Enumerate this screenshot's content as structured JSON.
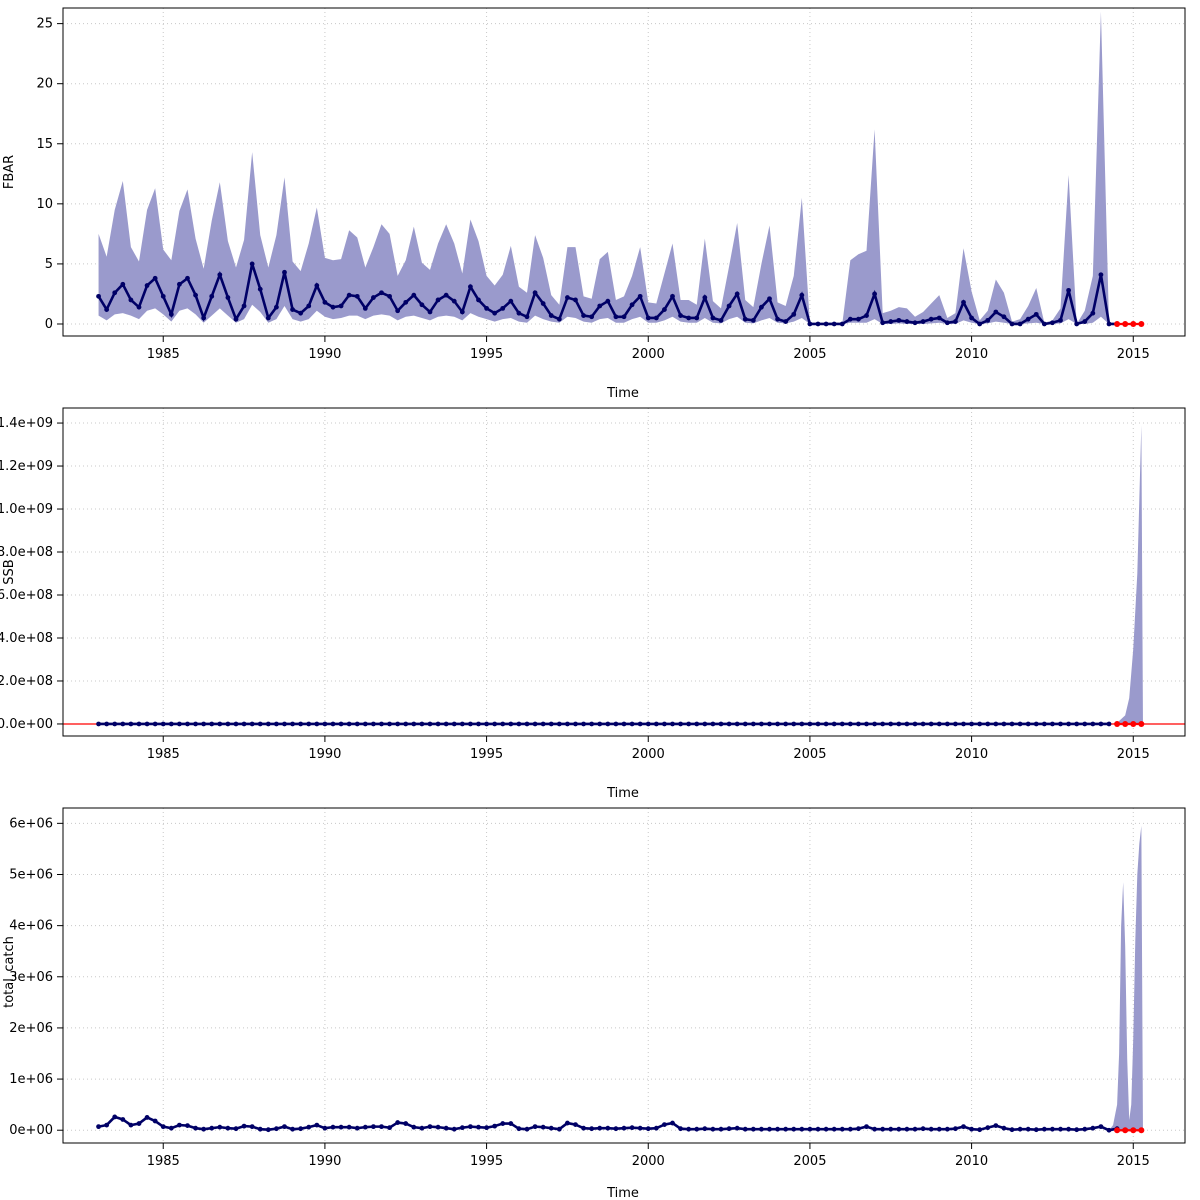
{
  "colors": {
    "band": "#9a9acc",
    "line": "#000066",
    "projection": "#ff0000",
    "grid": "#c8c8c8",
    "refline": "#ff0000"
  },
  "chart_data": [
    {
      "type": "line",
      "ylabel": "FBAR",
      "xlabel": "Time",
      "xlim": [
        1981.9,
        2016.6
      ],
      "ylim": [
        -1.0,
        26.3
      ],
      "xticks": [
        1985,
        1990,
        1995,
        2000,
        2005,
        2010,
        2015
      ],
      "xtick_labels": [
        "1985",
        "1990",
        "1995",
        "2000",
        "2005",
        "2010",
        "2015"
      ],
      "yticks": [
        0,
        5,
        10,
        15,
        20,
        25
      ],
      "ytick_labels": [
        "0",
        "5",
        "10",
        "15",
        "20",
        "25"
      ],
      "grid": true,
      "start": 1983.0,
      "step": 0.25,
      "series": [
        {
          "role": "median",
          "values": [
            2.3,
            1.2,
            2.6,
            3.3,
            2.0,
            1.4,
            3.2,
            3.8,
            2.3,
            0.8,
            3.3,
            3.8,
            2.4,
            0.5,
            2.3,
            4.1,
            2.2,
            0.4,
            1.5,
            5.0,
            2.9,
            0.5,
            1.4,
            4.3,
            1.2,
            0.9,
            1.5,
            3.2,
            1.8,
            1.4,
            1.5,
            2.4,
            2.3,
            1.3,
            2.2,
            2.6,
            2.3,
            1.1,
            1.8,
            2.4,
            1.6,
            1.0,
            2.0,
            2.4,
            1.9,
            1.0,
            3.1,
            2.0,
            1.3,
            0.9,
            1.3,
            1.9,
            0.9,
            0.6,
            2.6,
            1.7,
            0.7,
            0.4,
            2.2,
            2.0,
            0.7,
            0.6,
            1.5,
            1.9,
            0.6,
            0.6,
            1.6,
            2.3,
            0.5,
            0.5,
            1.2,
            2.3,
            0.7,
            0.5,
            0.5,
            2.2,
            0.5,
            0.3,
            1.5,
            2.5,
            0.4,
            0.3,
            1.4,
            2.1,
            0.4,
            0.2,
            0.8,
            2.4,
            0.0,
            0.0,
            0.0,
            0.0,
            0.0,
            0.4,
            0.4,
            0.7,
            2.5,
            0.1,
            0.2,
            0.3,
            0.2,
            0.1,
            0.2,
            0.4,
            0.5,
            0.1,
            0.2,
            1.8,
            0.5,
            0.0,
            0.3,
            1.0,
            0.6,
            0.0,
            0.0,
            0.4,
            0.8,
            0.0,
            0.1,
            0.3,
            2.8,
            0.0,
            0.2,
            0.9,
            4.1,
            0.0,
            0.0
          ]
        },
        {
          "role": "upper",
          "values": [
            7.5,
            5.6,
            9.5,
            11.9,
            6.4,
            5.2,
            9.5,
            11.3,
            6.2,
            5.3,
            9.4,
            11.2,
            7.1,
            4.6,
            8.6,
            11.8,
            6.9,
            4.7,
            7.0,
            14.3,
            7.4,
            4.7,
            7.4,
            12.2,
            5.2,
            4.4,
            6.7,
            9.7,
            5.5,
            5.3,
            5.4,
            7.8,
            7.2,
            4.7,
            6.4,
            8.3,
            7.5,
            4.0,
            5.3,
            8.1,
            5.1,
            4.5,
            6.7,
            8.3,
            6.7,
            4.2,
            8.7,
            6.9,
            4.0,
            3.2,
            4.1,
            6.5,
            3.1,
            2.6,
            7.4,
            5.5,
            2.4,
            1.6,
            6.4,
            6.4,
            2.3,
            2.1,
            5.4,
            6.0,
            2.0,
            2.3,
            4.0,
            6.4,
            1.8,
            1.7,
            4.2,
            6.7,
            2.0,
            2.0,
            1.6,
            7.1,
            1.9,
            1.3,
            4.8,
            8.4,
            2.0,
            1.4,
            5.0,
            8.2,
            1.8,
            1.5,
            4.0,
            10.5,
            0.0,
            0.0,
            0.0,
            0.0,
            0.0,
            5.3,
            5.8,
            6.1,
            16.2,
            0.9,
            1.1,
            1.4,
            1.3,
            0.6,
            1.0,
            1.7,
            2.4,
            0.5,
            0.9,
            6.3,
            2.7,
            0.3,
            1.1,
            3.7,
            2.6,
            0.2,
            0.4,
            1.5,
            3.0,
            0.1,
            0.3,
            1.3,
            12.4,
            0.0,
            1.1,
            4.0,
            26.0,
            0.0,
            0.0
          ]
        },
        {
          "role": "lower",
          "values": [
            0.7,
            0.3,
            0.8,
            0.9,
            0.7,
            0.4,
            1.1,
            1.3,
            0.8,
            0.2,
            1.1,
            1.3,
            0.8,
            0.1,
            0.7,
            1.3,
            0.7,
            0.1,
            0.4,
            1.6,
            1.0,
            0.1,
            0.4,
            1.5,
            0.4,
            0.2,
            0.4,
            1.1,
            0.6,
            0.4,
            0.5,
            0.7,
            0.7,
            0.4,
            0.7,
            0.8,
            0.7,
            0.3,
            0.6,
            0.7,
            0.5,
            0.3,
            0.6,
            0.7,
            0.6,
            0.3,
            0.9,
            0.6,
            0.4,
            0.2,
            0.4,
            0.5,
            0.2,
            0.1,
            0.7,
            0.4,
            0.2,
            0.1,
            0.6,
            0.5,
            0.2,
            0.1,
            0.4,
            0.5,
            0.1,
            0.1,
            0.4,
            0.6,
            0.1,
            0.1,
            0.3,
            0.6,
            0.2,
            0.1,
            0.1,
            0.5,
            0.1,
            0.05,
            0.4,
            0.6,
            0.1,
            0.05,
            0.3,
            0.5,
            0.1,
            0.05,
            0.2,
            0.5,
            0.0,
            0.0,
            0.0,
            0.0,
            0.0,
            0.1,
            0.1,
            0.1,
            0.4,
            0.0,
            0.0,
            0.05,
            0.0,
            0.0,
            0.0,
            0.05,
            0.1,
            0.0,
            0.0,
            0.3,
            0.1,
            0.0,
            0.05,
            0.2,
            0.1,
            0.0,
            0.0,
            0.05,
            0.1,
            0.0,
            0.0,
            0.05,
            0.4,
            0.0,
            0.0,
            0.1,
            0.6,
            0.0,
            0.0
          ]
        }
      ],
      "projection": {
        "x": [
          2014.5,
          2014.75,
          2015.0,
          2015.25
        ],
        "values": [
          0,
          0,
          0,
          0
        ]
      }
    },
    {
      "type": "line",
      "ylabel": "SSB",
      "xlabel": "Time",
      "xlim": [
        1981.9,
        2016.6
      ],
      "ylim": [
        -56000000.0,
        1470000000.0
      ],
      "xticks": [
        1985,
        1990,
        1995,
        2000,
        2005,
        2010,
        2015
      ],
      "xtick_labels": [
        "1985",
        "1990",
        "1995",
        "2000",
        "2005",
        "2010",
        "2015"
      ],
      "yticks": [
        0,
        200000000.0,
        400000000.0,
        600000000.0,
        800000000.0,
        1000000000.0,
        1200000000.0,
        1400000000.0
      ],
      "ytick_labels": [
        "0.0e+00",
        "2.0e+08",
        "4.0e+08",
        "6.0e+08",
        "8.0e+08",
        "1.0e+09",
        "1.2e+09",
        "1.4e+09"
      ],
      "grid": true,
      "start": 1983.0,
      "step": 0.25,
      "n_points": 126,
      "reference_line": 0,
      "band_tail": {
        "x": [
          2014.25,
          2014.5,
          2014.75,
          2014.875,
          2015.0,
          2015.125,
          2015.25,
          2015.3
        ],
        "upper": [
          0,
          5000000.0,
          40000000.0,
          120000000.0,
          350000000.0,
          700000000.0,
          1390000000.0,
          0
        ]
      },
      "projection": {
        "x": [
          2014.5,
          2014.75,
          2015.0,
          2015.25
        ],
        "values": [
          0,
          0,
          0,
          0
        ]
      }
    },
    {
      "type": "line",
      "ylabel": "total_catch",
      "xlabel": "Time",
      "xlim": [
        1981.9,
        2016.6
      ],
      "ylim": [
        -250000.0,
        6300000.0
      ],
      "xticks": [
        1985,
        1990,
        1995,
        2000,
        2005,
        2010,
        2015
      ],
      "xtick_labels": [
        "1985",
        "1990",
        "1995",
        "2000",
        "2005",
        "2010",
        "2015"
      ],
      "yticks": [
        0,
        1000000.0,
        2000000.0,
        3000000.0,
        4000000.0,
        5000000.0,
        6000000.0
      ],
      "ytick_labels": [
        "0e+00",
        "1e+06",
        "2e+06",
        "3e+06",
        "4e+06",
        "5e+06",
        "6e+06"
      ],
      "grid": true,
      "start": 1983.0,
      "step": 0.25,
      "series": [
        {
          "role": "median",
          "values": [
            70000,
            100000,
            260000,
            210000,
            100000,
            130000,
            250000,
            180000,
            70000,
            40000,
            100000,
            90000,
            40000,
            20000,
            40000,
            60000,
            40000,
            30000,
            80000,
            70000,
            20000,
            10000,
            30000,
            70000,
            20000,
            30000,
            60000,
            100000,
            40000,
            60000,
            60000,
            60000,
            40000,
            60000,
            70000,
            70000,
            50000,
            150000,
            130000,
            60000,
            40000,
            70000,
            60000,
            40000,
            20000,
            50000,
            70000,
            60000,
            50000,
            80000,
            130000,
            130000,
            30000,
            20000,
            70000,
            60000,
            40000,
            20000,
            140000,
            110000,
            40000,
            30000,
            40000,
            40000,
            30000,
            40000,
            50000,
            40000,
            30000,
            40000,
            110000,
            140000,
            30000,
            20000,
            20000,
            30000,
            20000,
            20000,
            30000,
            40000,
            20000,
            20000,
            20000,
            20000,
            20000,
            20000,
            20000,
            20000,
            20000,
            20000,
            20000,
            20000,
            20000,
            20000,
            30000,
            70000,
            20000,
            20000,
            20000,
            20000,
            20000,
            20000,
            30000,
            20000,
            20000,
            20000,
            30000,
            70000,
            20000,
            10000,
            50000,
            90000,
            40000,
            10000,
            20000,
            20000,
            10000,
            20000,
            20000,
            20000,
            20000,
            10000,
            20000,
            40000,
            70000,
            0,
            30000
          ]
        }
      ],
      "band_tail": {
        "x": [
          2014.25,
          2014.375,
          2014.5,
          2014.5625,
          2014.625,
          2014.6875,
          2014.75,
          2014.8125,
          2014.875,
          2014.9375,
          2015.0,
          2015.0625,
          2015.125,
          2015.1875,
          2015.25,
          2015.3
        ],
        "upper": [
          0,
          100000,
          500000,
          1500000,
          4000000,
          4850000,
          3600000,
          1400000,
          200000,
          500000,
          1800000,
          3700000,
          5000000,
          5600000,
          5950000,
          0
        ]
      },
      "projection": {
        "x": [
          2014.5,
          2014.75,
          2015.0,
          2015.25
        ],
        "values": [
          0,
          0,
          0,
          0
        ]
      }
    }
  ]
}
